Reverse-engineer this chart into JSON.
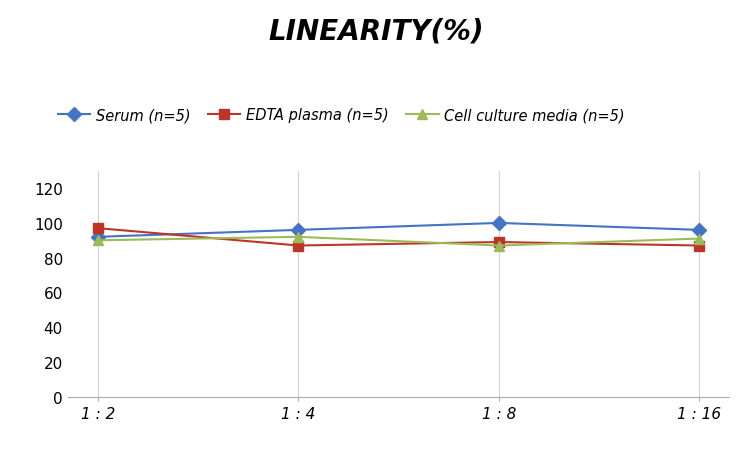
{
  "title": "LINEARITY(%)",
  "x_labels": [
    "1 : 2",
    "1 : 4",
    "1 : 8",
    "1 : 16"
  ],
  "x_values": [
    1,
    2,
    3,
    4
  ],
  "series": [
    {
      "name": "Serum (n=5)",
      "values": [
        92,
        96,
        100,
        96
      ],
      "color": "#4472C4",
      "marker": "D",
      "linestyle": "-"
    },
    {
      "name": "EDTA plasma (n=5)",
      "values": [
        97,
        87,
        89,
        87
      ],
      "color": "#BE3528",
      "marker": "s",
      "linestyle": "-"
    },
    {
      "name": "Cell culture media (n=5)",
      "values": [
        90,
        92,
        87,
        91
      ],
      "color": "#9BBB59",
      "marker": "^",
      "linestyle": "-"
    }
  ],
  "ylim": [
    0,
    130
  ],
  "yticks": [
    0,
    20,
    40,
    60,
    80,
    100,
    120
  ],
  "background_color": "#FFFFFF",
  "grid_color": "#D3D3D3",
  "title_fontsize": 20,
  "legend_fontsize": 10.5,
  "tick_fontsize": 11
}
